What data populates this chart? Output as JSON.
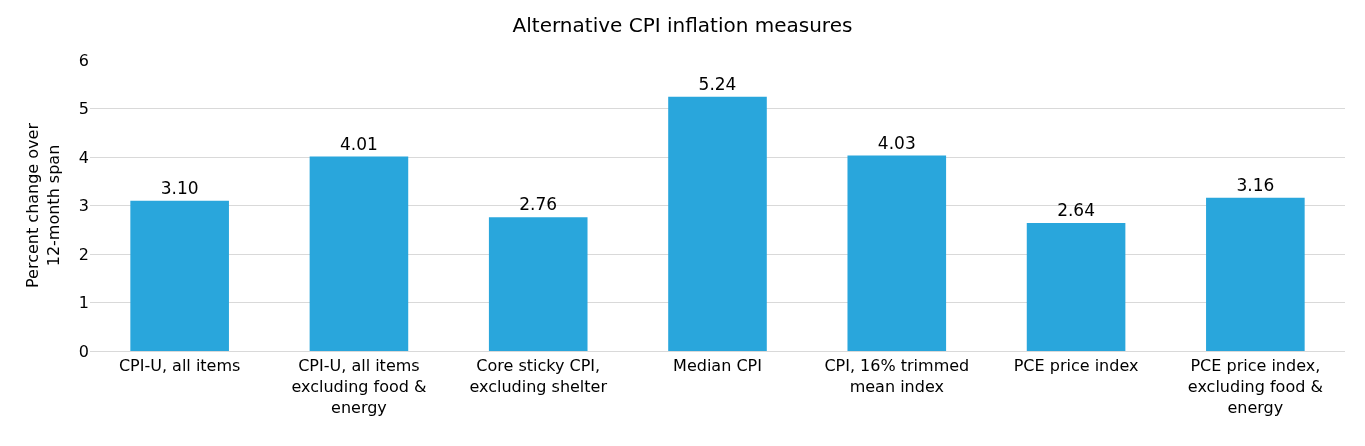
{
  "chart_data": {
    "type": "bar",
    "title": "Alternative CPI inflation measures",
    "ylabel": "Percent change over 12-month span",
    "categories": [
      "CPI-U, all items",
      "CPI-U, all items excluding food & energy",
      "Core sticky CPI, excluding shelter",
      "Median CPI",
      "CPI, 16% trimmed mean index",
      "PCE price index",
      "PCE price index, excluding food & energy"
    ],
    "values": [
      3.1,
      4.01,
      2.76,
      5.24,
      4.03,
      2.64,
      3.16
    ],
    "value_labels": [
      "3.10",
      "4.01",
      "2.76",
      "5.24",
      "4.03",
      "2.64",
      "3.16"
    ],
    "color": "#29a6dc",
    "ylim": [
      0,
      6
    ],
    "yticks": [
      0,
      1,
      2,
      3,
      4,
      5,
      6
    ],
    "grid": "y"
  }
}
